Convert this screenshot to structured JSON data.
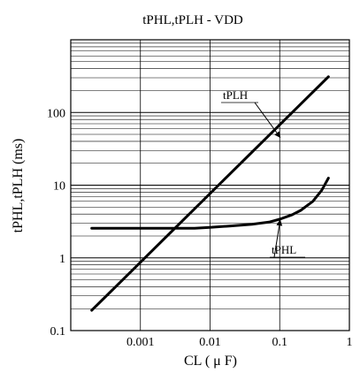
{
  "chart_data": {
    "type": "line",
    "title": "tPHL,tPLH - VDD",
    "xlabel": "CL ( μ F)",
    "ylabel": "tPHL,tPLH (ms)",
    "xscale": "log",
    "yscale": "log",
    "xlim": [
      0.0001,
      1
    ],
    "ylim": [
      0.1,
      1000
    ],
    "grid": true,
    "x_ticks": [
      {
        "value": 0.001,
        "label": "0.001"
      },
      {
        "value": 0.01,
        "label": "0.01"
      },
      {
        "value": 0.1,
        "label": "0.1"
      },
      {
        "value": 1,
        "label": "1"
      }
    ],
    "y_ticks": [
      {
        "value": 0.1,
        "label": "0.1"
      },
      {
        "value": 1,
        "label": "1"
      },
      {
        "value": 10,
        "label": "10"
      },
      {
        "value": 100,
        "label": "100"
      }
    ],
    "series": [
      {
        "name": "tPLH",
        "x": [
          0.0002,
          0.5
        ],
        "y": [
          0.19,
          310
        ]
      },
      {
        "name": "tPHL",
        "x": [
          0.0002,
          0.001,
          0.003,
          0.006,
          0.01,
          0.02,
          0.04,
          0.07,
          0.1,
          0.15,
          0.2,
          0.3,
          0.4,
          0.5
        ],
        "y": [
          2.55,
          2.55,
          2.55,
          2.55,
          2.62,
          2.75,
          2.9,
          3.1,
          3.4,
          3.9,
          4.5,
          6.0,
          8.5,
          12.5
        ]
      }
    ],
    "annotations": [
      {
        "text": "tPLH",
        "series": "tPLH",
        "target_x": 0.1,
        "target_y": 48
      },
      {
        "text": "tPHL",
        "series": "tPHL",
        "target_x": 0.1,
        "target_y": 3.5
      }
    ]
  }
}
